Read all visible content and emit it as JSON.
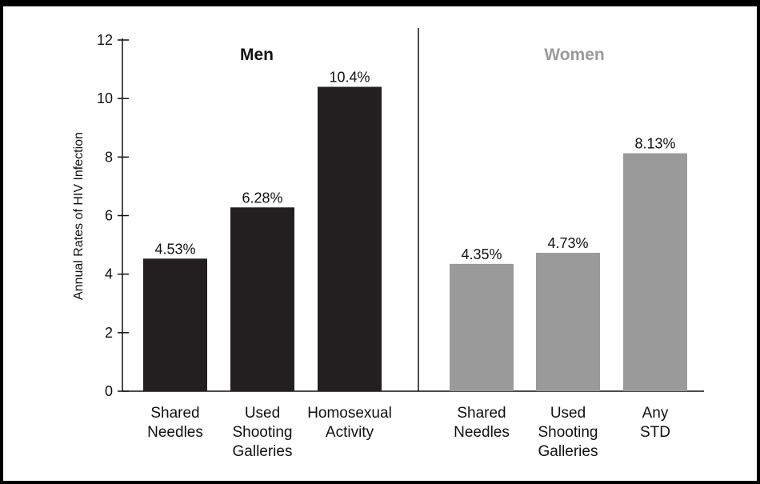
{
  "chart_data": {
    "type": "bar",
    "ylabel": "Annual Rates of HIV Infection",
    "ylim": [
      0,
      12
    ],
    "yticks": [
      0,
      2,
      4,
      6,
      8,
      10,
      12
    ],
    "groups": [
      {
        "name": "Men",
        "color": "#231f20",
        "title_color": "#111111",
        "categories": [
          [
            "Shared",
            "Needles"
          ],
          [
            "Used",
            "Shooting",
            "Galleries"
          ],
          [
            "Homosexual",
            "Activity"
          ]
        ],
        "values": [
          4.53,
          6.28,
          10.4
        ],
        "labels": [
          "4.53%",
          "6.28%",
          "10.4%"
        ]
      },
      {
        "name": "Women",
        "color": "#9a9a9a",
        "title_color": "#9a9a9a",
        "categories": [
          [
            "Shared",
            "Needles"
          ],
          [
            "Used",
            "Shooting",
            "Galleries"
          ],
          [
            "Any",
            "STD"
          ]
        ],
        "values": [
          4.35,
          4.73,
          8.13
        ],
        "labels": [
          "4.35%",
          "4.73%",
          "8.13%"
        ]
      }
    ],
    "grid": false,
    "legend": "none"
  }
}
